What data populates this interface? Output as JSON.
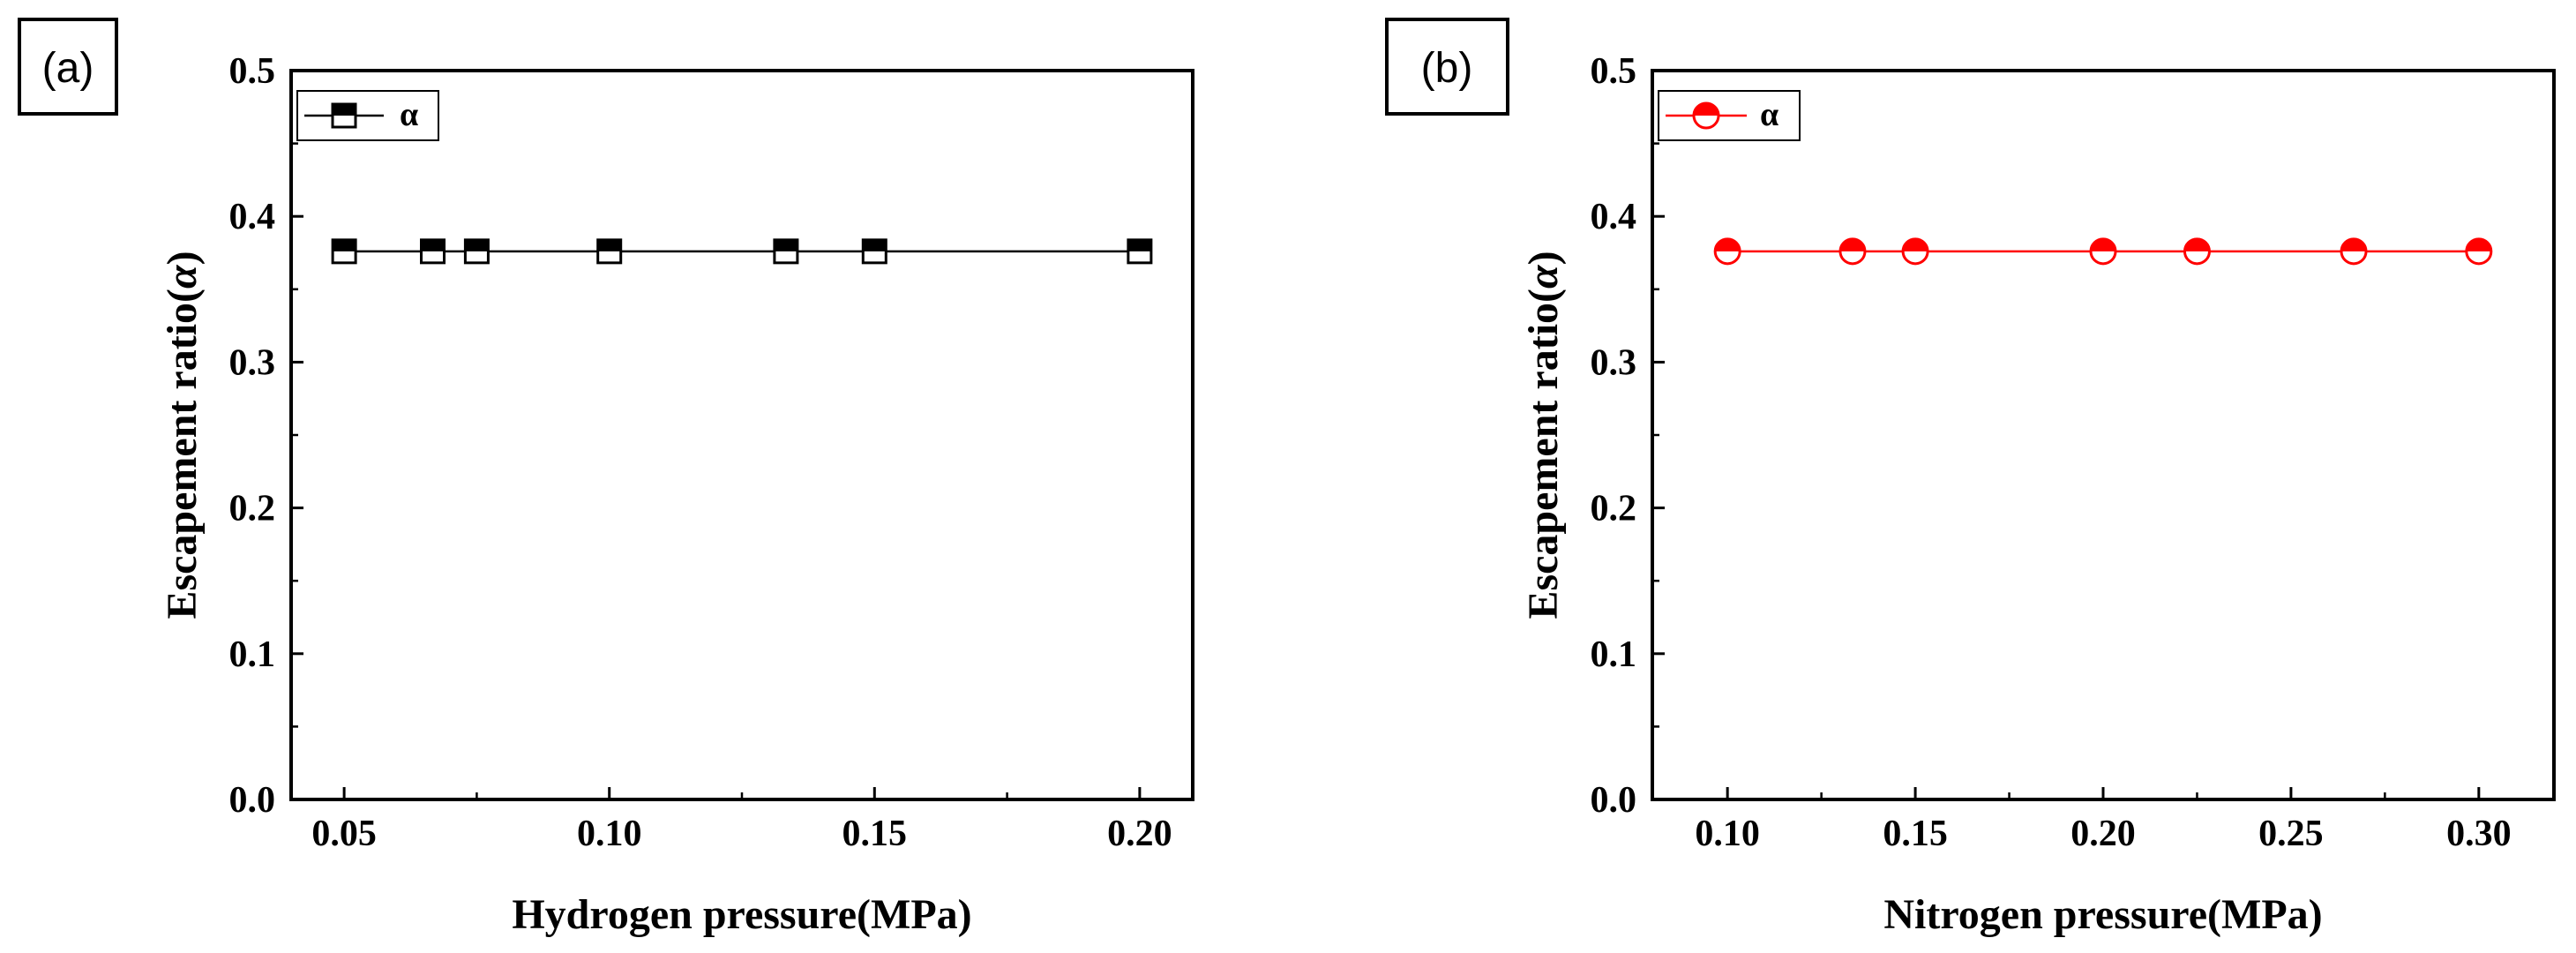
{
  "chart_data": [
    {
      "panel_label": "(a)",
      "type": "line",
      "xlabel": "Hydrogen pressure(MPa)",
      "ylabel_main": "Escapement ratio(",
      "ylabel_symbol": "α",
      "ylabel_close": ")",
      "xlim": [
        0.04,
        0.21
      ],
      "ylim": [
        0.0,
        0.5
      ],
      "x_ticks": [
        "0.05",
        "0.10",
        "0.15",
        "0.20"
      ],
      "x_tick_values": [
        0.05,
        0.1,
        0.15,
        0.2
      ],
      "y_ticks": [
        "0.0",
        "0.1",
        "0.2",
        "0.3",
        "0.4",
        "0.5"
      ],
      "y_tick_values": [
        0.0,
        0.1,
        0.2,
        0.3,
        0.4,
        0.5
      ],
      "legend_position": "top-left",
      "series": [
        {
          "name": "α",
          "color": "#000000",
          "marker": "half-filled-square",
          "x": [
            0.05,
            0.0667,
            0.075,
            0.1,
            0.1333,
            0.15,
            0.2
          ],
          "y": [
            0.376,
            0.376,
            0.376,
            0.376,
            0.376,
            0.376,
            0.376
          ]
        }
      ]
    },
    {
      "panel_label": "(b)",
      "type": "line",
      "xlabel": "Nitrogen pressure(MPa)",
      "ylabel_main": "Escapement ratio(",
      "ylabel_symbol": "α",
      "ylabel_close": ")",
      "xlim": [
        0.08,
        0.32
      ],
      "ylim": [
        0.0,
        0.5
      ],
      "x_ticks": [
        "0.10",
        "0.15",
        "0.20",
        "0.25",
        "0.30"
      ],
      "x_tick_values": [
        0.1,
        0.15,
        0.2,
        0.25,
        0.3
      ],
      "y_ticks": [
        "0.0",
        "0.1",
        "0.2",
        "0.3",
        "0.4",
        "0.5"
      ],
      "y_tick_values": [
        0.0,
        0.1,
        0.2,
        0.3,
        0.4,
        0.5
      ],
      "legend_position": "top-left",
      "series": [
        {
          "name": "α",
          "color": "#ff0000",
          "marker": "half-filled-circle",
          "x": [
            0.1,
            0.1333,
            0.15,
            0.2,
            0.225,
            0.2667,
            0.3
          ],
          "y": [
            0.376,
            0.376,
            0.376,
            0.376,
            0.376,
            0.376,
            0.376
          ]
        }
      ]
    }
  ]
}
